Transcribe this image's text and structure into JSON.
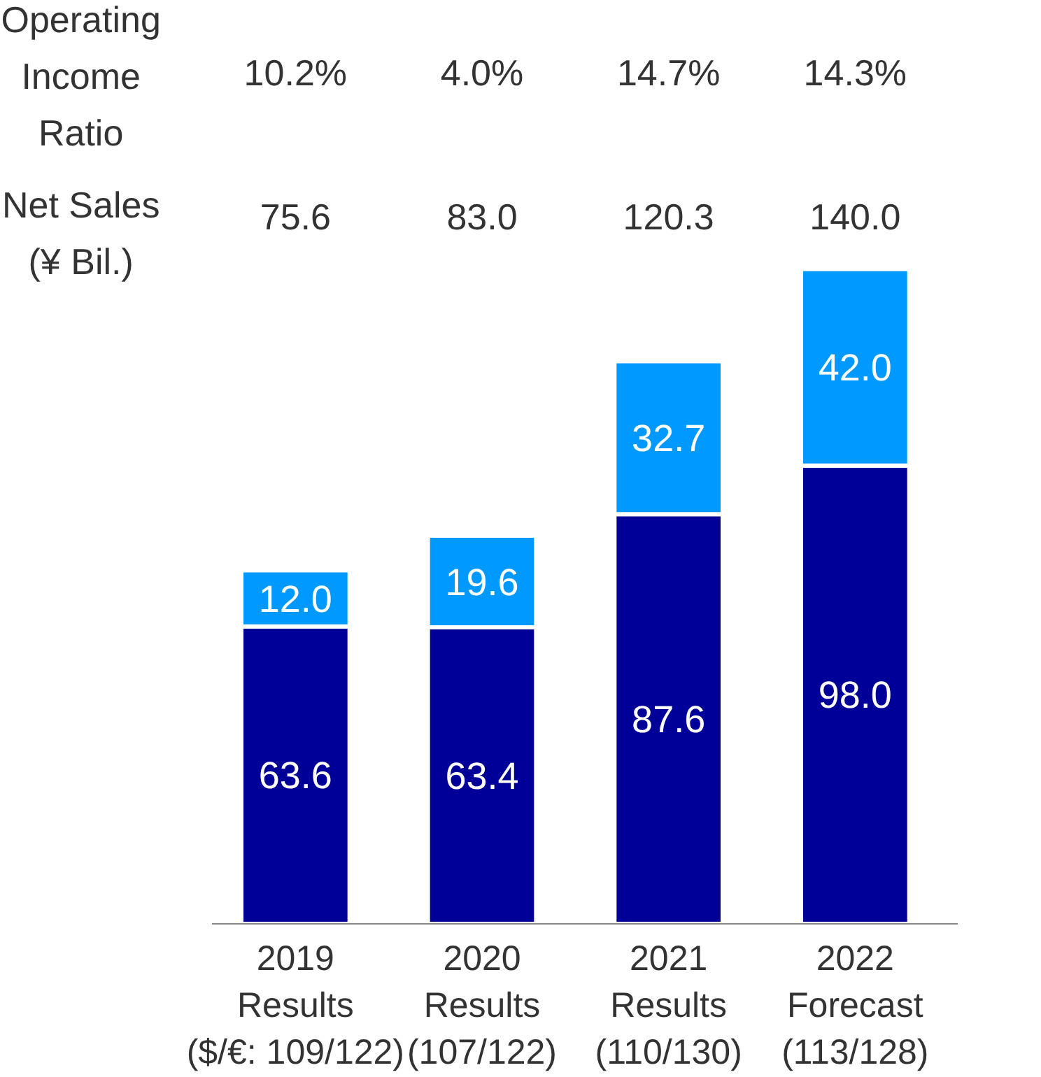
{
  "chart_data": {
    "type": "bar",
    "stacked": true,
    "grid": false,
    "tick_labels": "x",
    "categories": [
      "2019\nResults\n($/€: 109/122)",
      "2020\nResults\n(107/122)",
      "2021\nResults\n(110/130)",
      "2022\nForecast\n(113/128)"
    ],
    "series": [
      {
        "color": "#000099",
        "values": [
          63.6,
          63.4,
          87.6,
          98.0
        ],
        "value_labels": [
          "63.6",
          "63.4",
          "87.6",
          "98.0"
        ]
      },
      {
        "color": "#0099ff",
        "values": [
          12.0,
          19.6,
          32.7,
          42.0
        ],
        "value_labels": [
          "12.0",
          "19.6",
          "32.7",
          "42.0"
        ]
      }
    ],
    "annotations": [
      "Operating\nIncome\nRatio",
      "10.2%",
      "4.0%",
      "14.7%",
      "14.3%",
      "Net Sales\n(¥ Bil.)",
      "75.6",
      "83.0",
      "120.3",
      "140.0"
    ]
  }
}
